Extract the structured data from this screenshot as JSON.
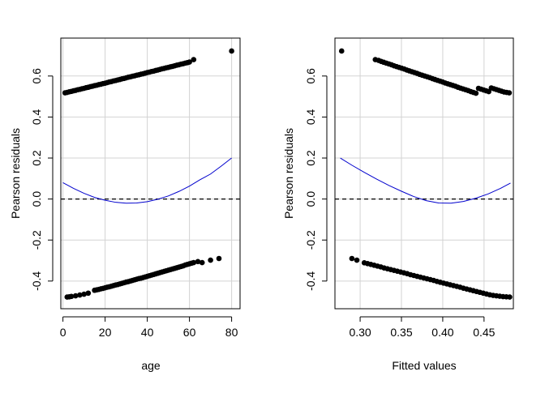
{
  "colors": {
    "points": "#000000",
    "smooth": "#0000cd",
    "zero_line": "#000000",
    "grid": "#d3d3d3",
    "frame": "#000000"
  },
  "chart_data": [
    {
      "type": "scatter",
      "title": "",
      "xlabel": "age",
      "ylabel": "Pearson residuals",
      "xlim": [
        -1,
        84
      ],
      "ylim": [
        -0.535,
        0.785
      ],
      "x_ticks": [
        0,
        20,
        40,
        60,
        80
      ],
      "x_tick_labels": [
        "0",
        "20",
        "40",
        "60",
        "80"
      ],
      "y_ticks": [
        -0.4,
        -0.2,
        0.0,
        0.2,
        0.4,
        0.6
      ],
      "y_tick_labels": [
        "-0.4",
        "-0.2",
        "0.0",
        "0.2",
        "0.4",
        "0.6"
      ],
      "grid": true,
      "reference_line": {
        "y": 0.0,
        "style": "dashed"
      },
      "series": [
        {
          "kind": "points",
          "x": [
            1,
            2,
            3,
            4,
            5,
            6,
            7,
            8,
            9,
            10,
            11,
            12,
            13,
            14,
            15,
            16,
            17,
            18,
            19,
            20,
            21,
            22,
            23,
            24,
            25,
            26,
            27,
            28,
            29,
            30,
            31,
            32,
            33,
            34,
            35,
            36,
            37,
            38,
            39,
            40,
            41,
            42,
            43,
            44,
            45,
            46,
            47,
            48,
            49,
            50,
            51,
            52,
            53,
            54,
            55,
            56,
            57,
            58,
            59,
            60,
            62,
            80
          ],
          "y": [
            0.518,
            0.52,
            0.523,
            0.525,
            0.528,
            0.53,
            0.533,
            0.535,
            0.538,
            0.54,
            0.543,
            0.545,
            0.548,
            0.55,
            0.553,
            0.555,
            0.558,
            0.56,
            0.563,
            0.565,
            0.568,
            0.571,
            0.573,
            0.576,
            0.578,
            0.581,
            0.583,
            0.586,
            0.588,
            0.591,
            0.594,
            0.596,
            0.599,
            0.601,
            0.604,
            0.606,
            0.609,
            0.611,
            0.614,
            0.617,
            0.619,
            0.622,
            0.624,
            0.627,
            0.629,
            0.632,
            0.635,
            0.637,
            0.64,
            0.642,
            0.645,
            0.647,
            0.65,
            0.653,
            0.655,
            0.658,
            0.66,
            0.663,
            0.665,
            0.668,
            0.68,
            0.722
          ]
        },
        {
          "kind": "points",
          "x": [
            2,
            3,
            4,
            6,
            8,
            10,
            12,
            15,
            16,
            17,
            18,
            19,
            20,
            21,
            22,
            23,
            24,
            25,
            26,
            27,
            28,
            29,
            30,
            31,
            32,
            33,
            34,
            35,
            36,
            37,
            38,
            39,
            40,
            41,
            42,
            43,
            44,
            45,
            46,
            47,
            48,
            49,
            50,
            51,
            52,
            53,
            54,
            55,
            56,
            57,
            58,
            59,
            60,
            61,
            62,
            64,
            66,
            70,
            74
          ],
          "y": [
            -0.478,
            -0.477,
            -0.475,
            -0.472,
            -0.468,
            -0.464,
            -0.459,
            -0.445,
            -0.443,
            -0.441,
            -0.438,
            -0.436,
            -0.433,
            -0.43,
            -0.428,
            -0.425,
            -0.422,
            -0.419,
            -0.417,
            -0.414,
            -0.411,
            -0.408,
            -0.405,
            -0.403,
            -0.4,
            -0.397,
            -0.394,
            -0.391,
            -0.388,
            -0.386,
            -0.383,
            -0.38,
            -0.377,
            -0.374,
            -0.371,
            -0.368,
            -0.365,
            -0.362,
            -0.359,
            -0.356,
            -0.353,
            -0.35,
            -0.347,
            -0.344,
            -0.341,
            -0.338,
            -0.335,
            -0.332,
            -0.329,
            -0.326,
            -0.322,
            -0.319,
            -0.316,
            -0.313,
            -0.31,
            -0.305,
            -0.31,
            -0.298,
            -0.29
          ]
        },
        {
          "kind": "curve",
          "x": [
            0,
            5,
            10,
            15,
            20,
            25,
            30,
            35,
            40,
            45,
            50,
            55,
            60,
            65,
            70,
            75,
            80
          ],
          "y": [
            0.08,
            0.052,
            0.028,
            0.008,
            -0.006,
            -0.016,
            -0.02,
            -0.019,
            -0.013,
            -0.001,
            0.015,
            0.037,
            0.063,
            0.094,
            0.122,
            0.16,
            0.2
          ]
        }
      ]
    },
    {
      "type": "scatter",
      "title": "",
      "xlabel": "Fitted values",
      "ylabel": "Pearson residuals",
      "xlim": [
        0.2695,
        0.4855
      ],
      "ylim": [
        -0.535,
        0.785
      ],
      "x_ticks": [
        0.3,
        0.35,
        0.4,
        0.45
      ],
      "x_tick_labels": [
        "0.30",
        "0.35",
        "0.40",
        "0.45"
      ],
      "y_ticks": [
        -0.4,
        -0.2,
        0.0,
        0.2,
        0.4,
        0.6
      ],
      "y_tick_labels": [
        "-0.4",
        "-0.2",
        "0.0",
        "0.2",
        "0.4",
        "0.6"
      ],
      "grid": true,
      "reference_line": {
        "y": 0.0,
        "style": "dashed"
      },
      "series": [
        {
          "kind": "points",
          "x": [
            0.2776,
            0.3184,
            0.3224,
            0.3255,
            0.3286,
            0.3317,
            0.3348,
            0.3379,
            0.341,
            0.3441,
            0.3472,
            0.3503,
            0.3534,
            0.3565,
            0.3596,
            0.3627,
            0.3658,
            0.3689,
            0.372,
            0.3751,
            0.3782,
            0.3813,
            0.3844,
            0.3875,
            0.3906,
            0.3937,
            0.3968,
            0.3999,
            0.403,
            0.4061,
            0.4092,
            0.4123,
            0.4154,
            0.4185,
            0.4216,
            0.4247,
            0.4278,
            0.4309,
            0.434,
            0.4371,
            0.4402,
            0.4433,
            0.4464,
            0.4495,
            0.4526,
            0.4557,
            0.4588,
            0.4619,
            0.465,
            0.4681,
            0.4712,
            0.4743,
            0.4774,
            0.4805
          ],
          "y": [
            0.722,
            0.68,
            0.676,
            0.671,
            0.667,
            0.663,
            0.659,
            0.655,
            0.65,
            0.646,
            0.642,
            0.638,
            0.634,
            0.629,
            0.625,
            0.621,
            0.617,
            0.613,
            0.608,
            0.604,
            0.6,
            0.596,
            0.592,
            0.587,
            0.583,
            0.579,
            0.575,
            0.571,
            0.566,
            0.562,
            0.558,
            0.554,
            0.55,
            0.545,
            0.541,
            0.537,
            0.533,
            0.529,
            0.524,
            0.52,
            0.516,
            0.54,
            0.536,
            0.532,
            0.528,
            0.524,
            0.542,
            0.538,
            0.534,
            0.53,
            0.526,
            0.522,
            0.52,
            0.518
          ]
        },
        {
          "kind": "points",
          "x": [
            0.29,
            0.296,
            0.305,
            0.309,
            0.313,
            0.317,
            0.321,
            0.325,
            0.329,
            0.333,
            0.337,
            0.341,
            0.345,
            0.349,
            0.353,
            0.357,
            0.361,
            0.365,
            0.369,
            0.373,
            0.377,
            0.381,
            0.385,
            0.389,
            0.393,
            0.397,
            0.401,
            0.405,
            0.409,
            0.413,
            0.417,
            0.421,
            0.425,
            0.429,
            0.433,
            0.437,
            0.441,
            0.445,
            0.449,
            0.453,
            0.457,
            0.461,
            0.465,
            0.469,
            0.473,
            0.477,
            0.481
          ],
          "y": [
            -0.29,
            -0.298,
            -0.311,
            -0.315,
            -0.319,
            -0.323,
            -0.327,
            -0.331,
            -0.336,
            -0.34,
            -0.344,
            -0.348,
            -0.352,
            -0.356,
            -0.36,
            -0.364,
            -0.369,
            -0.373,
            -0.377,
            -0.381,
            -0.385,
            -0.389,
            -0.393,
            -0.397,
            -0.402,
            -0.406,
            -0.41,
            -0.414,
            -0.418,
            -0.422,
            -0.426,
            -0.43,
            -0.435,
            -0.439,
            -0.443,
            -0.447,
            -0.451,
            -0.455,
            -0.459,
            -0.463,
            -0.467,
            -0.47,
            -0.472,
            -0.474,
            -0.476,
            -0.477,
            -0.478
          ]
        },
        {
          "kind": "curve",
          "x": [
            0.276,
            0.29,
            0.305,
            0.32,
            0.335,
            0.35,
            0.365,
            0.38,
            0.395,
            0.41,
            0.425,
            0.44,
            0.455,
            0.47,
            0.482
          ],
          "y": [
            0.2,
            0.165,
            0.13,
            0.097,
            0.066,
            0.038,
            0.012,
            -0.008,
            -0.019,
            -0.02,
            -0.012,
            0.004,
            0.025,
            0.052,
            0.078
          ]
        }
      ]
    }
  ]
}
